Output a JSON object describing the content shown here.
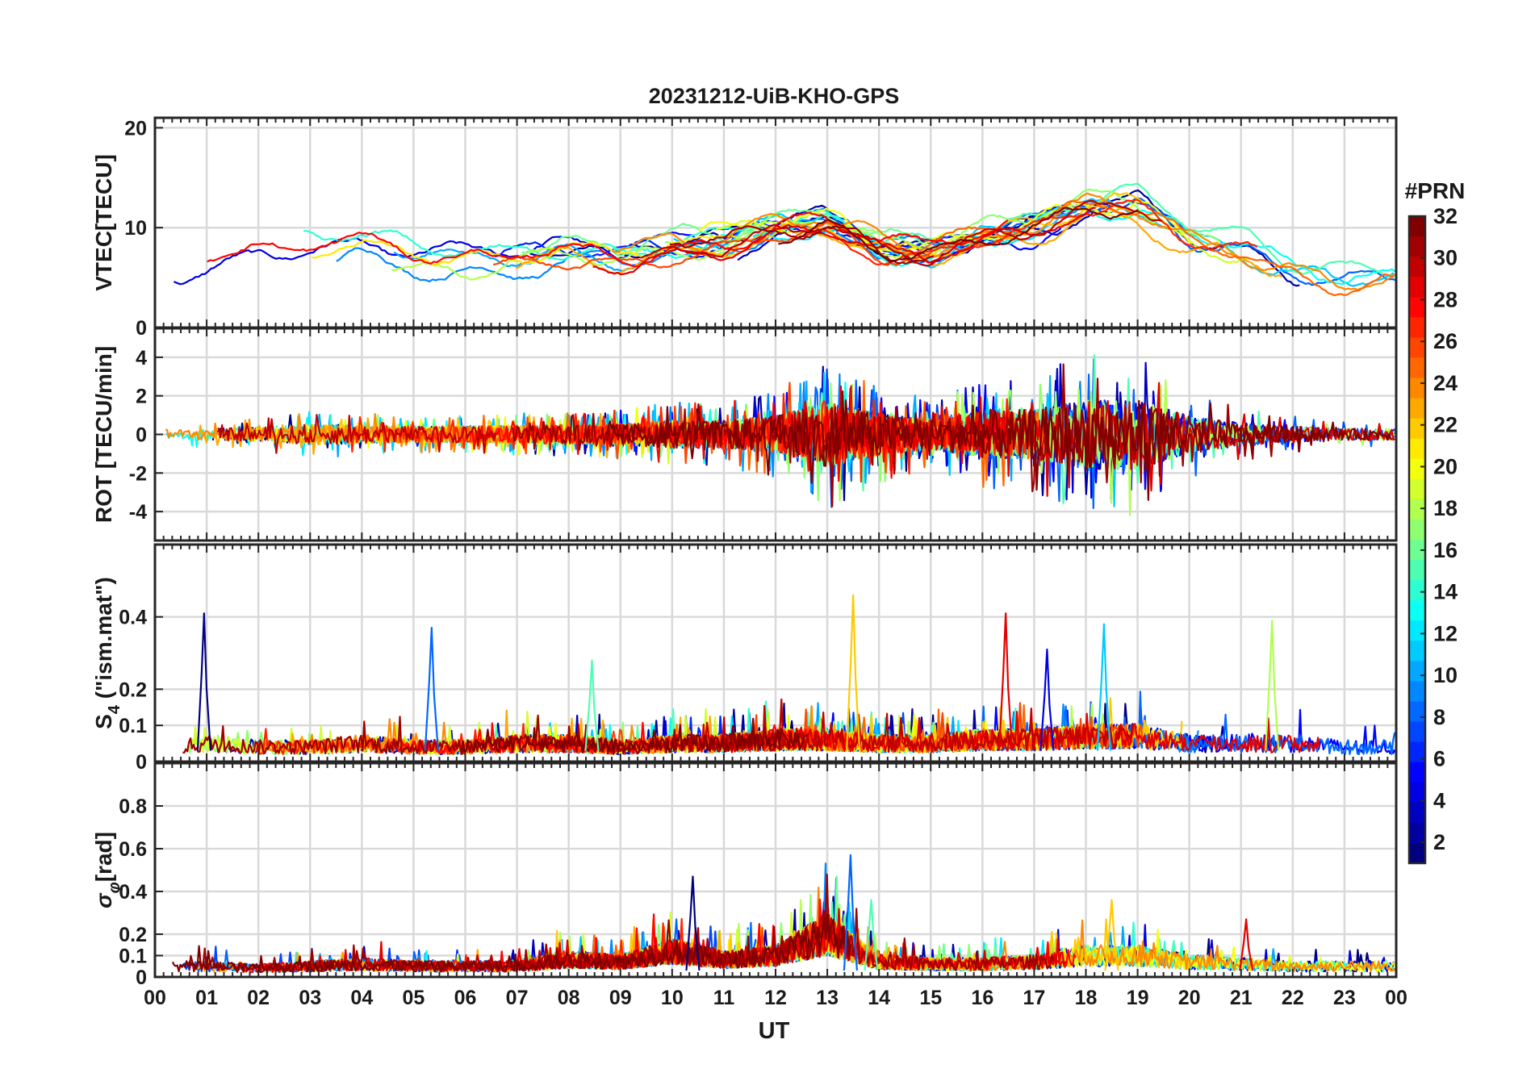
{
  "chart_data": {
    "type": "line",
    "title": "20231212-UiB-KHO-GPS",
    "xlabel": "UT",
    "x_ticks": [
      "00",
      "01",
      "02",
      "03",
      "04",
      "05",
      "06",
      "07",
      "08",
      "09",
      "10",
      "11",
      "12",
      "13",
      "14",
      "15",
      "16",
      "17",
      "18",
      "19",
      "20",
      "21",
      "22",
      "23",
      "00"
    ],
    "xlim": [
      0,
      24
    ],
    "grid": true,
    "colorbar": {
      "label": "#PRN",
      "range": [
        1,
        32
      ],
      "ticks": [
        "2",
        "4",
        "6",
        "8",
        "10",
        "12",
        "14",
        "16",
        "18",
        "20",
        "22",
        "24",
        "26",
        "28",
        "30",
        "32"
      ]
    },
    "panels": [
      {
        "id": "vtec",
        "ylabel": "VTEC[TECU]",
        "ylim": [
          0,
          21
        ],
        "y_ticks": [
          0,
          10,
          20
        ],
        "y_tick_labels": [
          "0",
          "10",
          "20"
        ],
        "envelope_x": [
          0,
          1,
          2,
          3,
          4,
          5,
          6,
          7,
          8,
          9,
          10,
          11,
          12,
          13,
          14,
          15,
          16,
          17,
          18,
          19,
          20,
          21,
          22,
          23,
          24
        ],
        "envelope_y": [
          5.5,
          6.0,
          7.0,
          8.0,
          8.0,
          7.0,
          6.5,
          7.0,
          7.5,
          7.0,
          8.0,
          8.5,
          10.0,
          10.5,
          8.0,
          7.5,
          9.0,
          10.0,
          12.0,
          12.0,
          9.0,
          8.0,
          6.0,
          5.0,
          5.0
        ]
      },
      {
        "id": "rot",
        "ylabel": "ROT [TECU/min]",
        "ylim": [
          -5.5,
          5.5
        ],
        "y_ticks": [
          -4,
          -2,
          0,
          2,
          4
        ],
        "y_tick_labels": [
          "-4",
          "-2",
          "0",
          "2",
          "4"
        ],
        "envelope_x": [
          0,
          1,
          2,
          3,
          4,
          5,
          6,
          7,
          8,
          9,
          10,
          11,
          12,
          13,
          14,
          15,
          16,
          17,
          18,
          19,
          20,
          21,
          22,
          23,
          24
        ],
        "envelope_y": [
          0.4,
          0.5,
          0.6,
          0.9,
          0.8,
          0.7,
          0.7,
          0.8,
          0.8,
          0.9,
          1.2,
          1.2,
          1.6,
          2.8,
          1.8,
          1.3,
          2.0,
          2.2,
          3.0,
          3.0,
          1.6,
          1.0,
          0.7,
          0.5,
          0.5
        ]
      },
      {
        "id": "s4",
        "ylabel": "S4 (\"ism.mat\")",
        "ylabel_main": "S",
        "ylabel_sub": "4",
        "ylabel_rest": " (\"ism.mat\")",
        "ylim": [
          0,
          0.6
        ],
        "y_ticks": [
          0,
          0.1,
          0.2,
          0.4
        ],
        "y_tick_labels": [
          "0",
          "0.1",
          "0.2",
          "0.4"
        ],
        "envelope_x": [
          0,
          1,
          2,
          3,
          4,
          5,
          6,
          7,
          8,
          9,
          10,
          11,
          12,
          13,
          14,
          15,
          16,
          17,
          18,
          19,
          20,
          21,
          22,
          23,
          24
        ],
        "envelope_y": [
          0.03,
          0.05,
          0.04,
          0.04,
          0.05,
          0.04,
          0.04,
          0.05,
          0.05,
          0.04,
          0.05,
          0.05,
          0.06,
          0.06,
          0.05,
          0.05,
          0.06,
          0.06,
          0.07,
          0.07,
          0.05,
          0.05,
          0.05,
          0.04,
          0.04
        ],
        "spikes": [
          {
            "x": 0.95,
            "y": 0.41
          },
          {
            "x": 5.35,
            "y": 0.37
          },
          {
            "x": 8.45,
            "y": 0.28
          },
          {
            "x": 13.5,
            "y": 0.46
          },
          {
            "x": 16.45,
            "y": 0.41
          },
          {
            "x": 17.25,
            "y": 0.31
          },
          {
            "x": 18.35,
            "y": 0.38
          },
          {
            "x": 21.6,
            "y": 0.39
          }
        ]
      },
      {
        "id": "sigma",
        "ylabel": "σφ[rad]",
        "ylabel_main": "σ",
        "ylabel_sub": "φ",
        "ylabel_rest": "[rad]",
        "ylim": [
          0,
          1.0
        ],
        "y_ticks": [
          0,
          0.1,
          0.2,
          0.4,
          0.6,
          0.8
        ],
        "y_tick_labels": [
          "0",
          "0.1",
          "0.2",
          "0.4",
          "0.6",
          "0.8"
        ],
        "envelope_x": [
          0,
          1,
          2,
          3,
          4,
          5,
          6,
          7,
          8,
          9,
          10,
          11,
          12,
          13,
          14,
          15,
          16,
          17,
          18,
          19,
          20,
          21,
          22,
          23,
          24
        ],
        "envelope_y": [
          0.05,
          0.05,
          0.04,
          0.05,
          0.06,
          0.05,
          0.05,
          0.05,
          0.08,
          0.07,
          0.12,
          0.08,
          0.1,
          0.2,
          0.07,
          0.06,
          0.06,
          0.07,
          0.1,
          0.1,
          0.07,
          0.06,
          0.05,
          0.05,
          0.05
        ],
        "spikes": [
          {
            "x": 10.4,
            "y": 0.47
          },
          {
            "x": 13.45,
            "y": 0.57
          },
          {
            "x": 13.85,
            "y": 0.36
          },
          {
            "x": 18.5,
            "y": 0.36
          },
          {
            "x": 21.1,
            "y": 0.27
          }
        ]
      }
    ]
  }
}
